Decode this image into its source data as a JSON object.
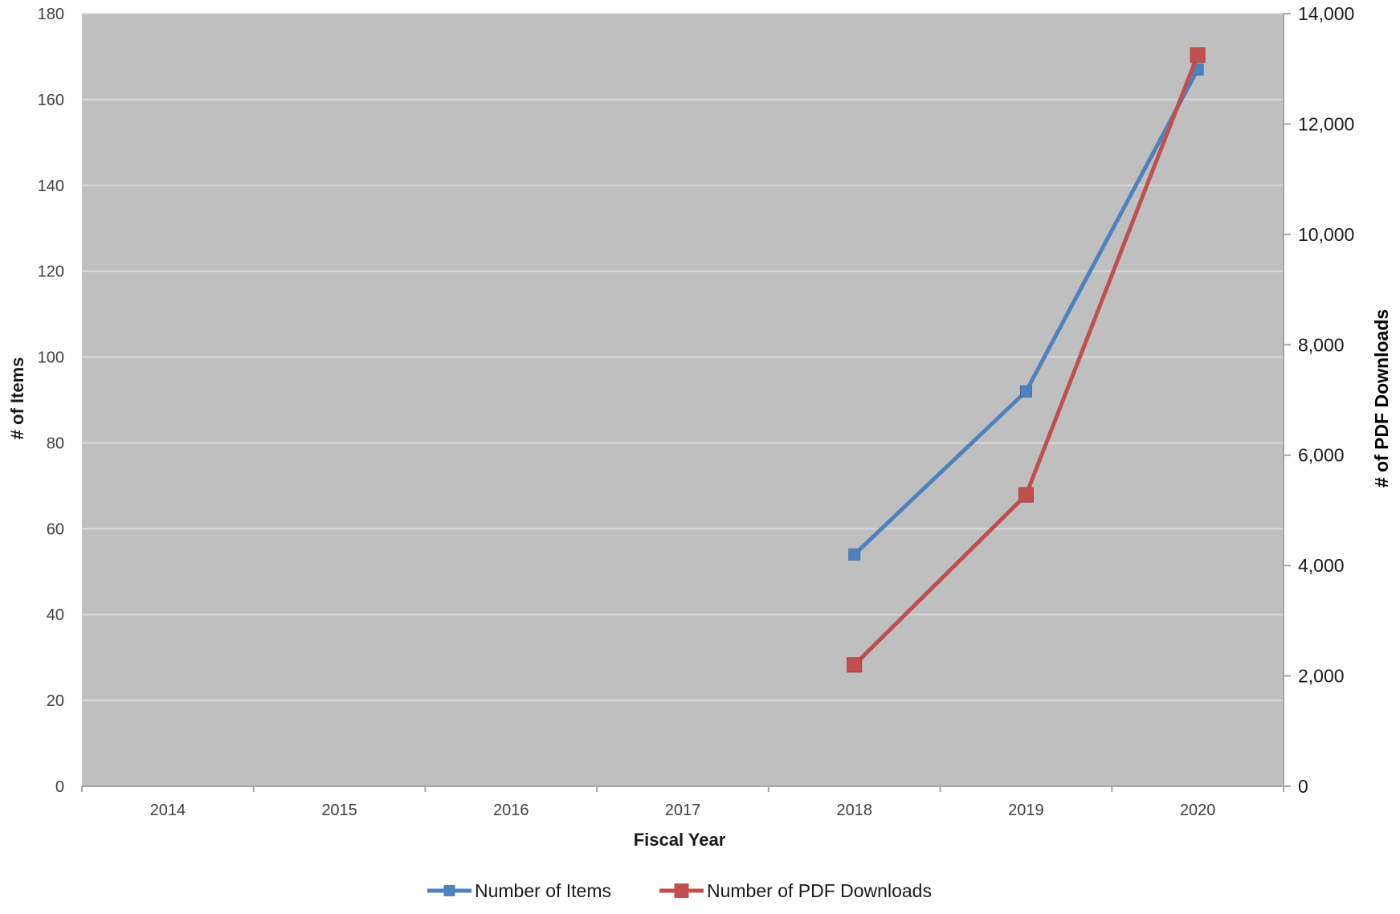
{
  "chart_data": {
    "type": "line",
    "xlabel": "Fiscal Year",
    "ylabel": "# of Items",
    "y2label": "# of PDF Downloads",
    "categories": [
      "2014",
      "2015",
      "2016",
      "2017",
      "2018",
      "2019",
      "2020"
    ],
    "ylim": [
      0,
      180
    ],
    "y2lim": [
      0,
      14000
    ],
    "yticks": [
      0,
      20,
      40,
      60,
      80,
      100,
      120,
      140,
      160,
      180
    ],
    "y2ticks": [
      0,
      2000,
      4000,
      6000,
      8000,
      10000,
      12000,
      14000
    ],
    "y2tick_labels": [
      "0",
      "2,000",
      "4,000",
      "6,000",
      "8,000",
      "10,000",
      "12,000",
      "14,000"
    ],
    "grid": true,
    "legend_position": "bottom",
    "series": [
      {
        "name": "Number of Items",
        "axis": "left",
        "color": "#4F81BD",
        "values": [
          null,
          null,
          null,
          null,
          54,
          92,
          167
        ]
      },
      {
        "name": "Number of PDF Downloads",
        "axis": "right",
        "color": "#C0504D",
        "values": [
          null,
          null,
          null,
          null,
          2200,
          5280,
          13250
        ]
      }
    ],
    "colors": {
      "plot_background": "#BFBFBF",
      "gridline": "#D9D9D9",
      "axis_line": "#A6A6A6"
    }
  }
}
